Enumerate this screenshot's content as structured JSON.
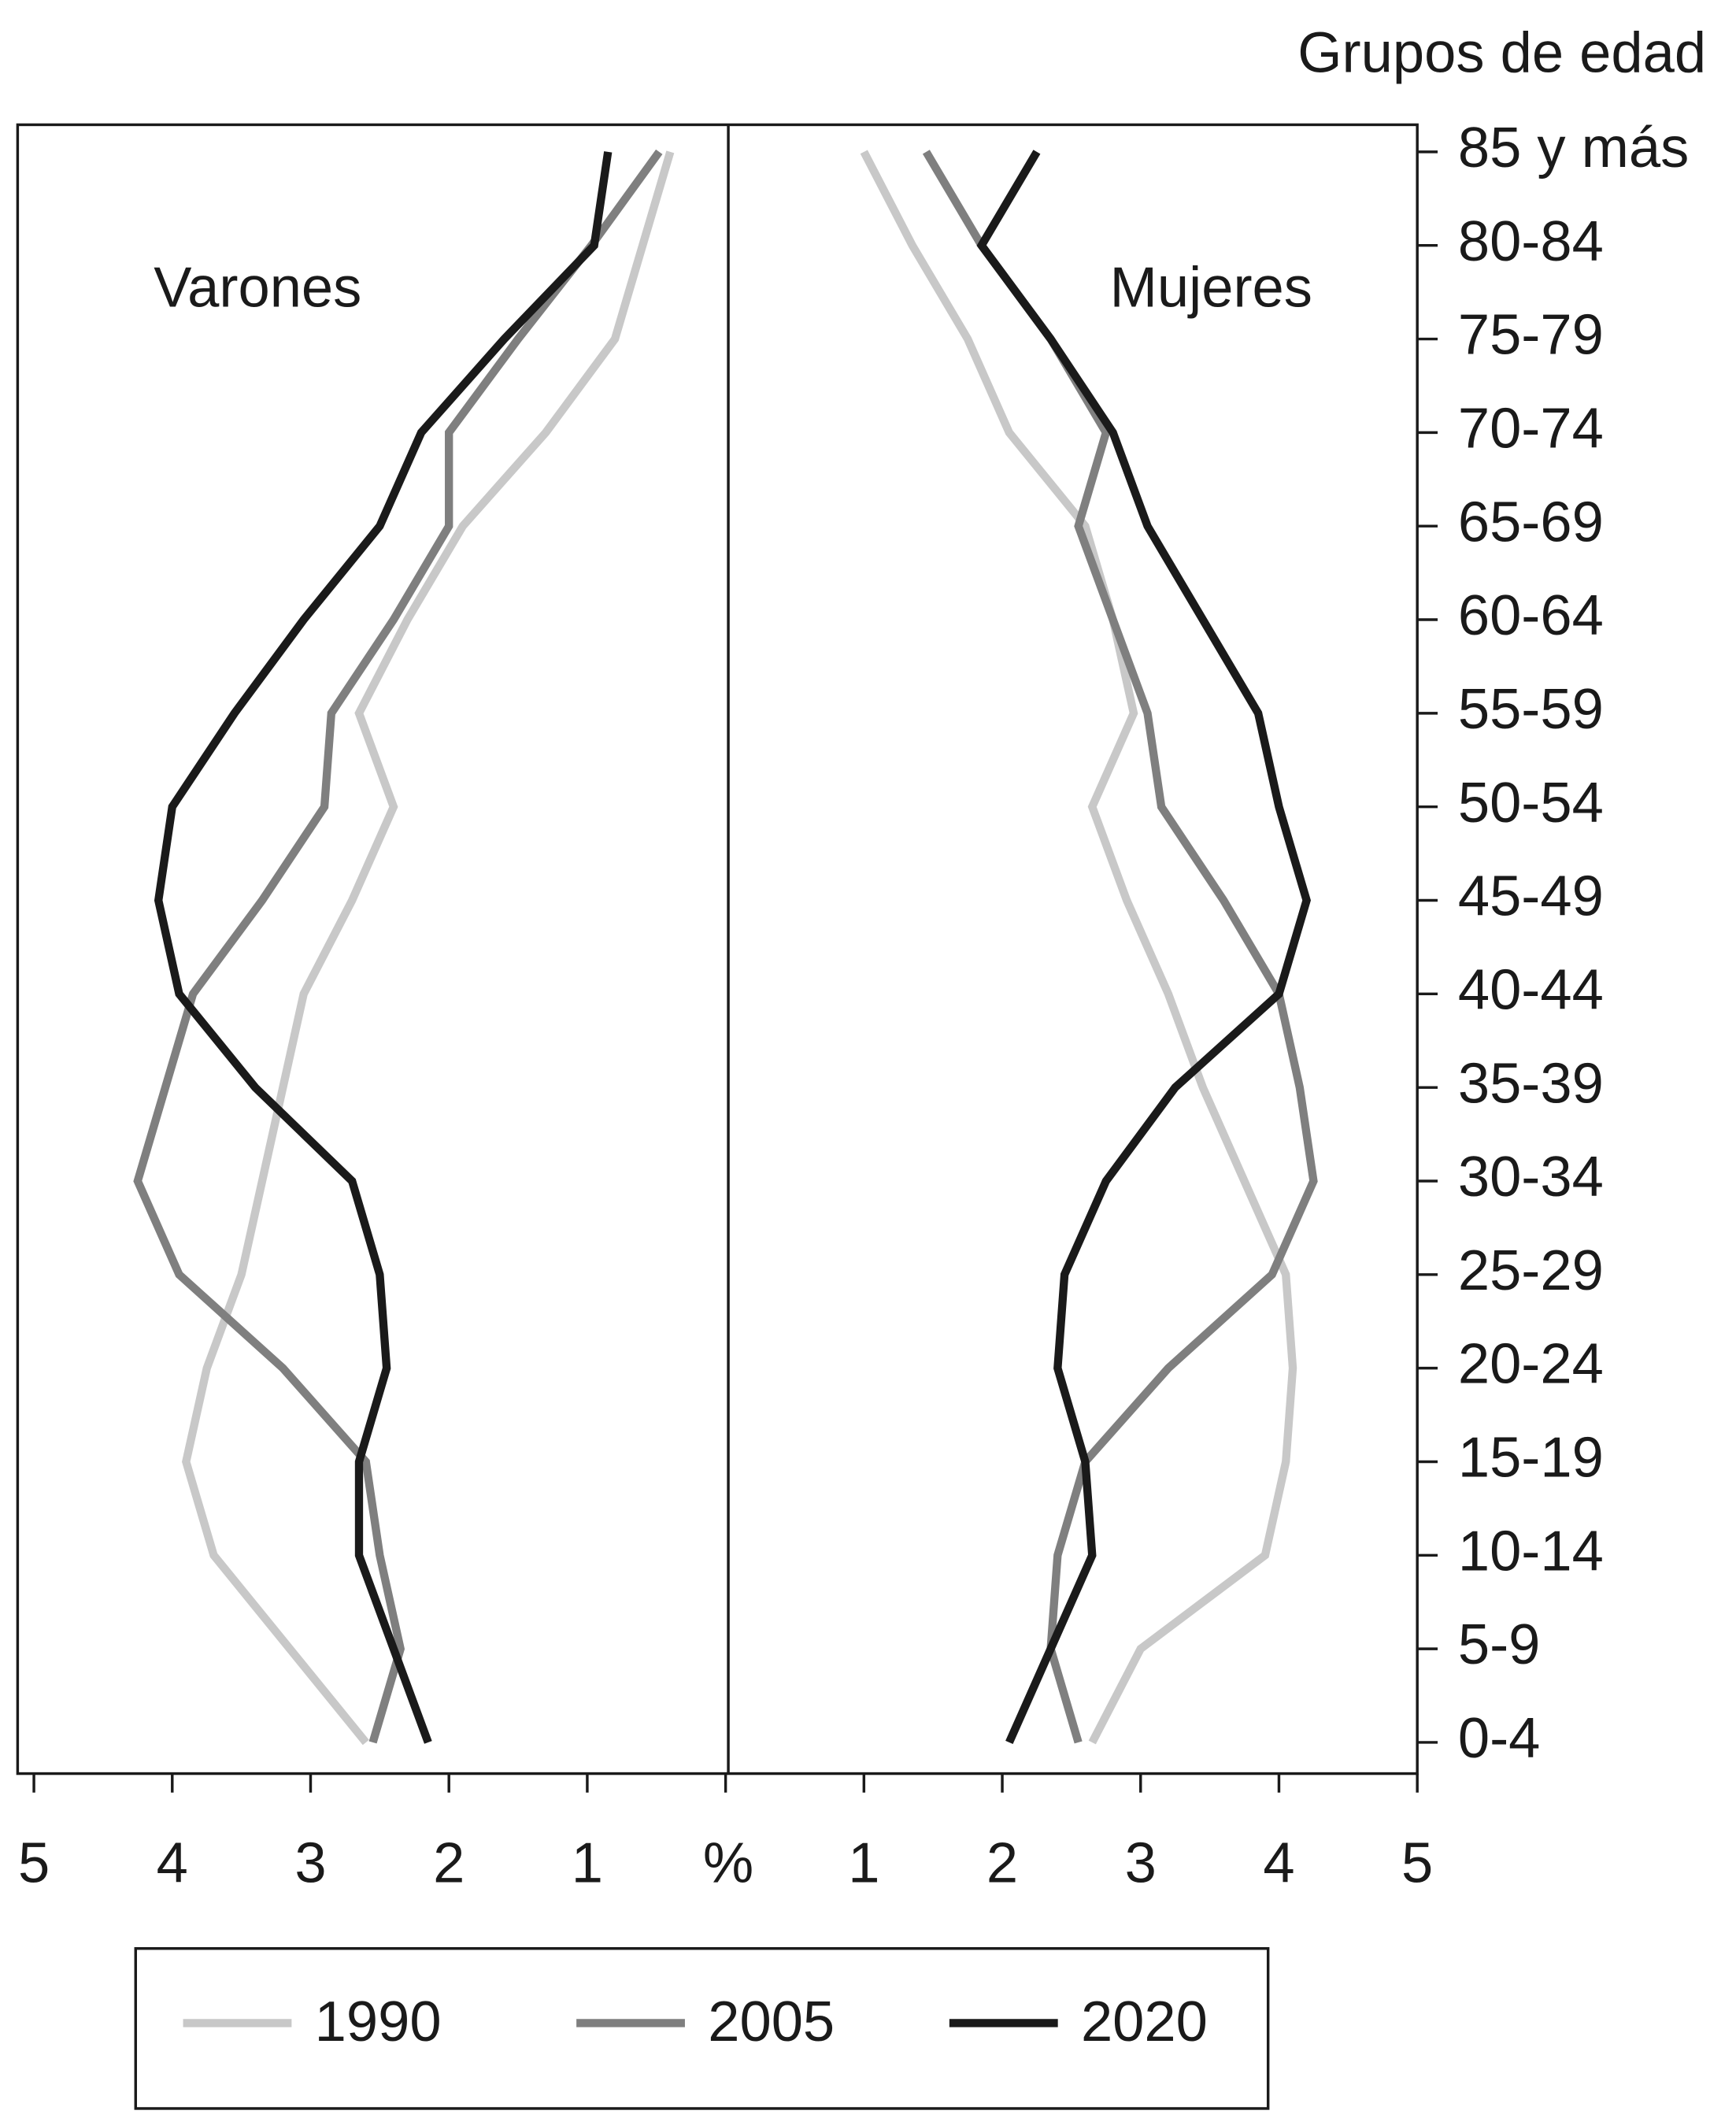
{
  "chart_data": {
    "type": "line",
    "title": "Grupos de edad",
    "x_label": "%",
    "panels": [
      "Varones",
      "Mujeres"
    ],
    "categories": [
      "0-4",
      "5-9",
      "10-14",
      "15-19",
      "20-24",
      "25-29",
      "30-34",
      "35-39",
      "40-44",
      "45-49",
      "50-54",
      "55-59",
      "60-64",
      "65-69",
      "70-74",
      "75-79",
      "80-84",
      "85 y más"
    ],
    "xlim": [
      0,
      5
    ],
    "xticks": [
      1,
      2,
      3,
      4,
      5
    ],
    "series": [
      {
        "name": "1990",
        "color": "#c8c8c8",
        "values": [
          [
            2.6,
            3.15,
            3.7,
            3.9,
            3.75,
            3.5,
            3.35,
            3.2,
            3.05,
            2.7,
            2.4,
            2.65,
            2.3,
            1.9,
            1.3,
            0.8,
            0.6,
            0.4
          ],
          [
            2.65,
            3.0,
            3.9,
            4.05,
            4.1,
            4.05,
            3.75,
            3.45,
            3.2,
            2.9,
            2.65,
            2.95,
            2.8,
            2.6,
            2.05,
            1.75,
            1.35,
            1.0
          ]
        ]
      },
      {
        "name": "2005",
        "color": "#7f7f7f",
        "values": [
          [
            2.55,
            2.35,
            2.5,
            2.6,
            3.2,
            3.95,
            4.25,
            4.05,
            3.85,
            3.35,
            2.9,
            2.85,
            2.4,
            2.0,
            2.0,
            1.5,
            0.97,
            0.48
          ],
          [
            2.55,
            2.35,
            2.4,
            2.6,
            3.2,
            3.95,
            4.25,
            4.15,
            4.0,
            3.6,
            3.15,
            3.05,
            2.8,
            2.55,
            2.75,
            2.35,
            1.85,
            1.45
          ]
        ]
      },
      {
        "name": "2020",
        "color": "#1a1a1a",
        "values": [
          [
            2.15,
            2.4,
            2.65,
            2.65,
            2.45,
            2.5,
            2.7,
            3.4,
            3.95,
            4.1,
            4.0,
            3.55,
            3.05,
            2.5,
            2.2,
            1.6,
            0.95,
            0.85
          ],
          [
            2.05,
            2.35,
            2.65,
            2.6,
            2.4,
            2.45,
            2.75,
            3.25,
            4.0,
            4.2,
            4.0,
            3.85,
            3.45,
            3.05,
            2.8,
            2.35,
            1.85,
            2.25
          ]
        ]
      }
    ]
  }
}
